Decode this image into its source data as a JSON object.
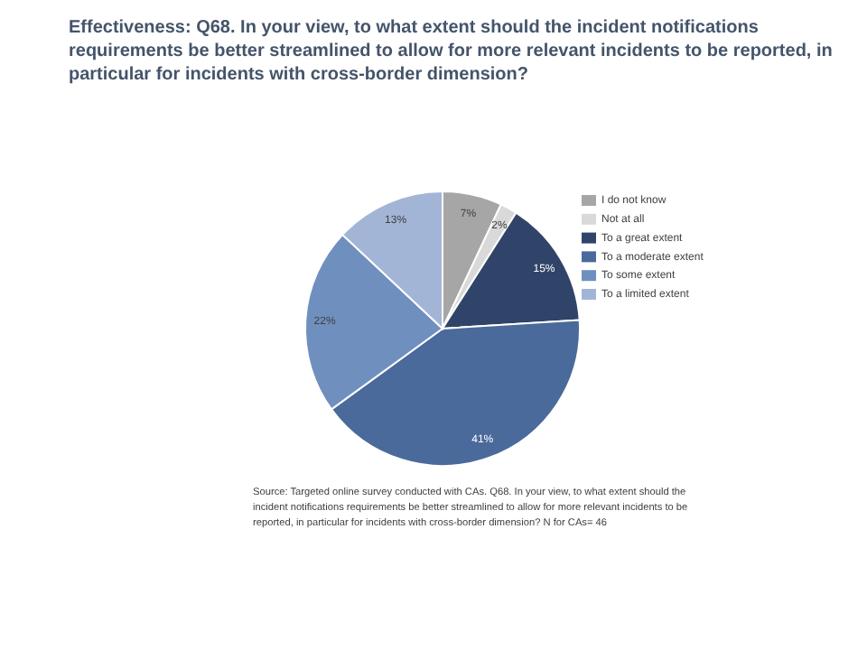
{
  "chart_data": {
    "type": "pie",
    "title": "Effectiveness: Q68. In your view, to what extent should the incident notifications requirements be better streamlined to allow for more relevant incidents to be reported, in particular for incidents with cross-border dimension?",
    "categories": [
      "I do not know",
      "Not at all",
      "To a great extent",
      "To a moderate extent",
      "To some extent",
      "To a limited extent"
    ],
    "values": [
      7,
      2,
      15,
      41,
      22,
      13
    ],
    "value_labels": [
      "7%",
      "2%",
      "15%",
      "41%",
      "22%",
      "13%"
    ],
    "colors": [
      "#a6a6a6",
      "#d9d9d9",
      "#2f4468",
      "#4a6a9b",
      "#6f8fbf",
      "#a3b5d6"
    ],
    "legend": "right",
    "annotations": [
      "Source: Targeted online survey conducted with CAs. Q68. In your view, to what extent should the incident notifications requirements be better streamlined to allow for more relevant incidents to be reported, in particular for incidents with cross-border dimension? N for CAs= 46"
    ]
  }
}
